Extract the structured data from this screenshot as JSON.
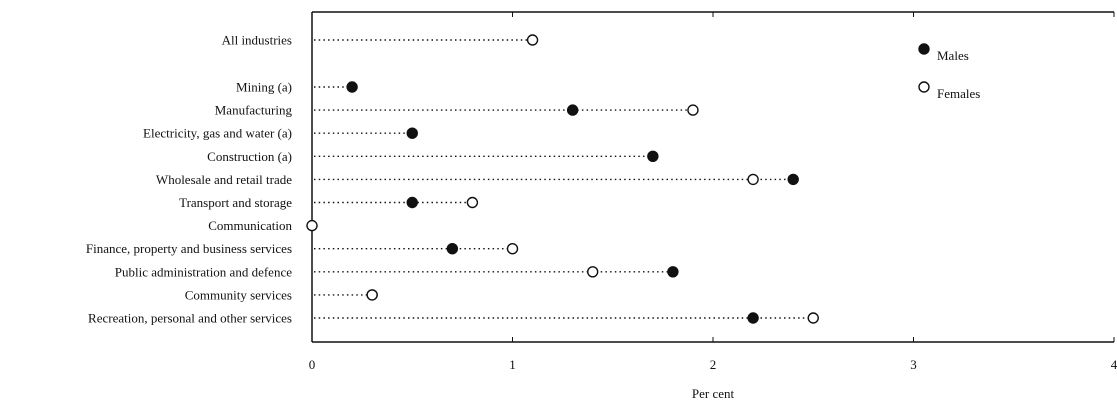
{
  "chart_data": {
    "type": "scatter",
    "title": "",
    "xlabel": "Per cent",
    "ylabel": "",
    "xlim": [
      0,
      4
    ],
    "x_ticks": [
      "0",
      "1",
      "2",
      "3",
      "4"
    ],
    "legend_position": "top-right",
    "categories": [
      "All industries",
      "Mining (a)",
      "Manufacturing",
      "Electricity, gas and water (a)",
      "Construction (a)",
      "Wholesale and retail trade",
      "Transport and storage",
      "Communication",
      "Finance, property and business services",
      "Public administration and defence",
      "Community services",
      "Recreation, personal and other services"
    ],
    "series": [
      {
        "name": "Males",
        "marker": "filled-circle",
        "values": [
          null,
          0.2,
          1.3,
          0.5,
          1.7,
          2.4,
          0.5,
          null,
          0.7,
          1.8,
          0.3,
          2.2
        ]
      },
      {
        "name": "Females",
        "marker": "open-circle",
        "values": [
          1.1,
          null,
          1.9,
          null,
          null,
          2.2,
          0.8,
          0.0,
          1.0,
          1.4,
          0.3,
          2.5
        ]
      }
    ]
  }
}
